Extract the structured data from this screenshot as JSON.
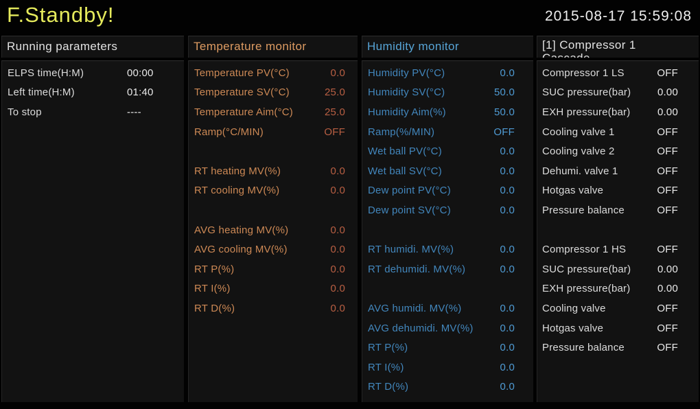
{
  "titlebar": {
    "status": "F.Standby!",
    "datetime": "2015-08-17 15:59:08",
    "status_color": "#e5ea5c"
  },
  "themes": {
    "white": {
      "header": "#e2e2e2",
      "label": "#dcdcdc",
      "value": "#e9e9e9"
    },
    "orange": {
      "header": "#dd9b62",
      "label": "#cd8955",
      "value": "#b95f43"
    },
    "blue": {
      "header": "#57a4d6",
      "label": "#4286bc",
      "value": "#4f9bd4"
    }
  },
  "columns": {
    "running": {
      "header": "Running parameters",
      "rows": [
        {
          "label": "ELPS time(H:M)",
          "value": "00:00"
        },
        {
          "label": "Left time(H:M)",
          "value": "01:40"
        },
        {
          "label": "To stop",
          "value": "----"
        }
      ]
    },
    "temperature": {
      "header": "Temperature monitor",
      "rows": [
        {
          "label": "Temperature PV(°C)",
          "value": "0.0"
        },
        {
          "label": "Temperature SV(°C)",
          "value": "25.0"
        },
        {
          "label": "Temperature Aim(°C)",
          "value": "25.0"
        },
        {
          "label": "Ramp(°C/MIN)",
          "value": "OFF"
        },
        {
          "label": "",
          "value": ""
        },
        {
          "label": "RT heating MV(%)",
          "value": "0.0"
        },
        {
          "label": "RT cooling MV(%)",
          "value": "0.0"
        },
        {
          "label": "",
          "value": ""
        },
        {
          "label": "AVG heating MV(%)",
          "value": "0.0"
        },
        {
          "label": "AVG cooling MV(%)",
          "value": "0.0"
        },
        {
          "label": "RT P(%)",
          "value": "0.0"
        },
        {
          "label": "RT I(%)",
          "value": "0.0"
        },
        {
          "label": "RT D(%)",
          "value": "0.0"
        }
      ]
    },
    "humidity": {
      "header": "Humidity monitor",
      "rows": [
        {
          "label": "Humidity PV(°C)",
          "value": "0.0"
        },
        {
          "label": "Humidity SV(°C)",
          "value": "50.0"
        },
        {
          "label": "Humidity Aim(%)",
          "value": "50.0"
        },
        {
          "label": "Ramp(%/MIN)",
          "value": "OFF"
        },
        {
          "label": "Wet ball PV(°C)",
          "value": "0.0"
        },
        {
          "label": "Wet ball SV(°C)",
          "value": "0.0"
        },
        {
          "label": "Dew point PV(°C)",
          "value": "0.0"
        },
        {
          "label": "Dew point SV(°C)",
          "value": "0.0"
        },
        {
          "label": "",
          "value": ""
        },
        {
          "label": "RT humidi. MV(%)",
          "value": "0.0"
        },
        {
          "label": "RT dehumidi. MV(%)",
          "value": "0.0"
        },
        {
          "label": "",
          "value": ""
        },
        {
          "label": "AVG humidi. MV(%)",
          "value": "0.0"
        },
        {
          "label": "AVG dehumidi. MV(%)",
          "value": "0.0"
        },
        {
          "label": "RT P(%)",
          "value": "0.0"
        },
        {
          "label": "RT I(%)",
          "value": "0.0"
        },
        {
          "label": "RT D(%)",
          "value": "0.0"
        }
      ]
    },
    "compressor": {
      "header": "[1] Compressor 1",
      "header_line2": "Cascade",
      "rows": [
        {
          "label": "Compressor 1 LS",
          "value": "OFF"
        },
        {
          "label": "SUC pressure(bar)",
          "value": "0.00"
        },
        {
          "label": "EXH pressure(bar)",
          "value": "0.00"
        },
        {
          "label": "Cooling valve 1",
          "value": "OFF"
        },
        {
          "label": "Cooling valve 2",
          "value": "OFF"
        },
        {
          "label": "Dehumi. valve 1",
          "value": "OFF"
        },
        {
          "label": "Hotgas valve",
          "value": "OFF"
        },
        {
          "label": "Pressure balance",
          "value": "OFF"
        },
        {
          "label": "",
          "value": ""
        },
        {
          "label": "Compressor 1 HS",
          "value": "OFF"
        },
        {
          "label": "SUC pressure(bar)",
          "value": "0.00"
        },
        {
          "label": "EXH pressure(bar)",
          "value": "0.00"
        },
        {
          "label": "Cooling valve",
          "value": "OFF"
        },
        {
          "label": "Hotgas valve",
          "value": "OFF"
        },
        {
          "label": "Pressure balance",
          "value": "OFF"
        }
      ]
    }
  }
}
